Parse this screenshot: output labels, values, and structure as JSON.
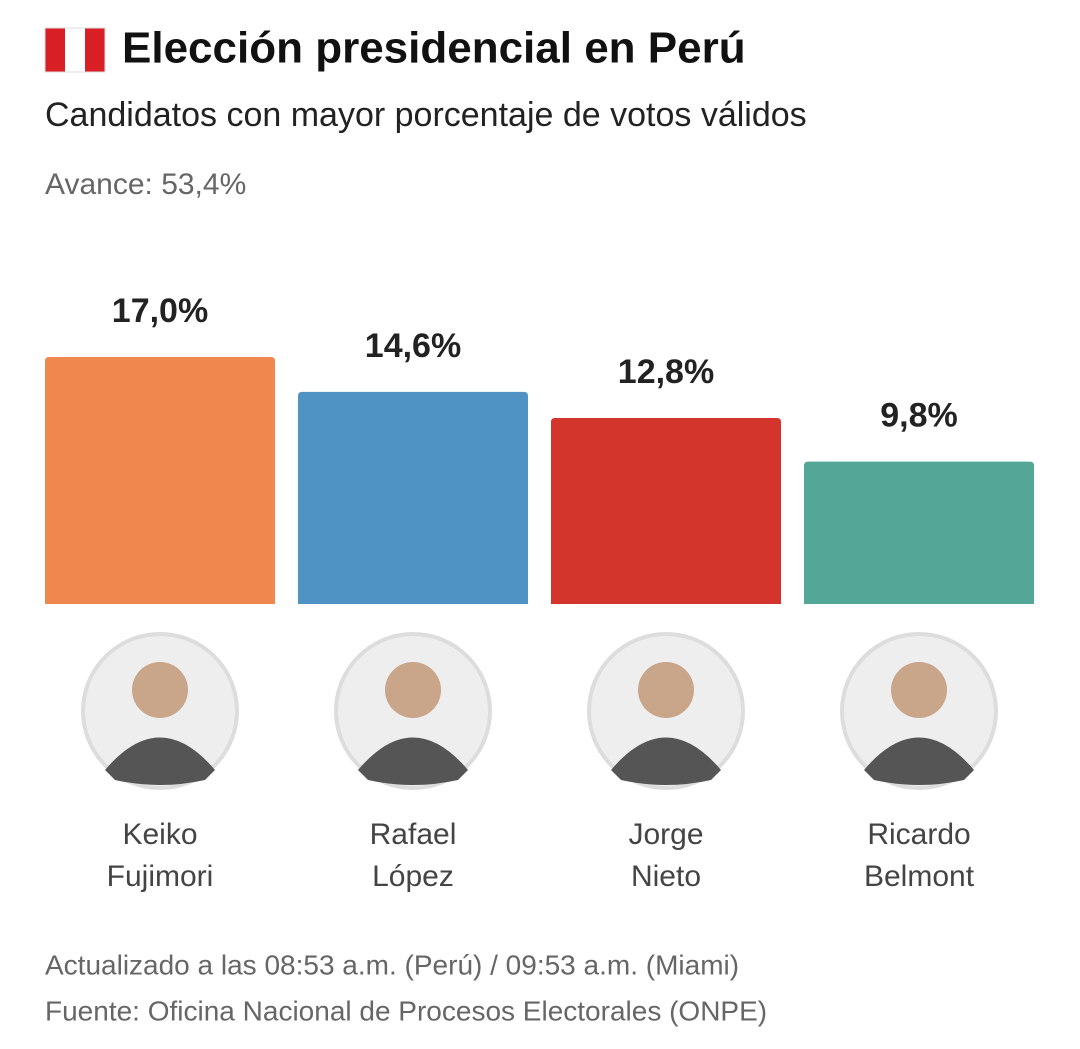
{
  "chart_data": {
    "type": "bar",
    "title": "Elección presidencial en Perú",
    "subtitle": "Candidatos con mayor porcentaje de votos válidos",
    "progress": "Avance: 53,4%",
    "categories": [
      "Keiko Fujimori",
      "Rafael López",
      "Jorge Nieto",
      "Ricardo Belmont"
    ],
    "values": [
      17.0,
      14.6,
      12.8,
      9.8
    ],
    "value_labels": [
      "17,0%",
      "14,6%",
      "12,8%",
      "9,8%"
    ],
    "colors": [
      "#ef874f",
      "#4f93c4",
      "#d3342b",
      "#52a796"
    ],
    "footer": [
      "Actualizado a las 08:53 a.m. (Perú) / 09:53 a.m. (Miami)",
      "Fuente: Oficina Nacional de Procesos Electorales (ONPE)"
    ]
  }
}
